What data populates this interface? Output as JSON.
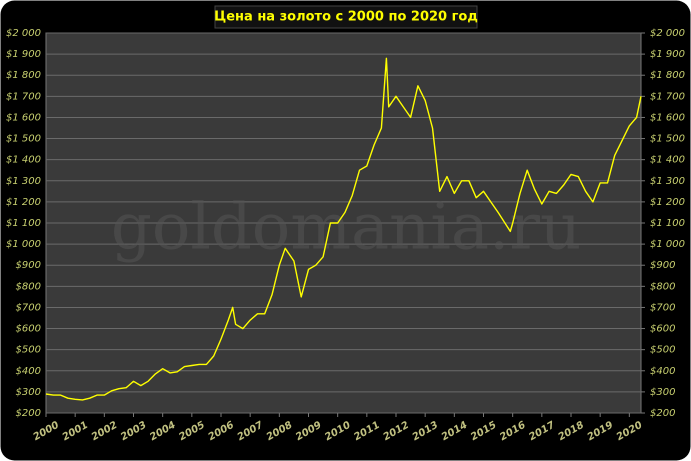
{
  "chart_data": {
    "type": "line",
    "title": "Цена на золото с 2000 по 2020 год",
    "annotation": "goldomania.ru",
    "color": "#ffff00",
    "x": [
      2000,
      2000.25,
      2000.5,
      2000.75,
      2001,
      2001.25,
      2001.5,
      2001.75,
      2002,
      2002.25,
      2002.5,
      2002.75,
      2003,
      2003.25,
      2003.5,
      2003.75,
      2004,
      2004.25,
      2004.5,
      2004.75,
      2005,
      2005.25,
      2005.5,
      2005.75,
      2006,
      2006.25,
      2006.4,
      2006.5,
      2006.75,
      2007,
      2007.25,
      2007.5,
      2007.75,
      2008,
      2008.2,
      2008.5,
      2008.75,
      2009,
      2009.25,
      2009.5,
      2009.75,
      2010,
      2010.25,
      2010.5,
      2010.75,
      2011,
      2011.25,
      2011.5,
      2011.67,
      2011.75,
      2012,
      2012.25,
      2012.5,
      2012.75,
      2013,
      2013.25,
      2013.5,
      2013.75,
      2014,
      2014.25,
      2014.5,
      2014.75,
      2015,
      2015.25,
      2015.5,
      2015.92,
      2016,
      2016.25,
      2016.5,
      2016.75,
      2017,
      2017.25,
      2017.5,
      2017.75,
      2018,
      2018.25,
      2018.5,
      2018.75,
      2019,
      2019.25,
      2019.5,
      2019.75,
      2020,
      2020.25,
      2020.4
    ],
    "values": [
      290,
      285,
      285,
      270,
      265,
      262,
      270,
      285,
      285,
      305,
      315,
      320,
      350,
      330,
      350,
      385,
      410,
      390,
      395,
      420,
      425,
      430,
      430,
      470,
      550,
      640,
      700,
      620,
      600,
      640,
      670,
      670,
      760,
      900,
      980,
      920,
      750,
      880,
      900,
      940,
      1100,
      1100,
      1150,
      1230,
      1350,
      1370,
      1470,
      1550,
      1880,
      1650,
      1700,
      1650,
      1600,
      1750,
      1680,
      1550,
      1250,
      1320,
      1240,
      1300,
      1300,
      1220,
      1250,
      1200,
      1150,
      1060,
      1100,
      1240,
      1350,
      1260,
      1190,
      1250,
      1240,
      1280,
      1330,
      1320,
      1250,
      1200,
      1290,
      1290,
      1420,
      1490,
      1560,
      1600,
      1700
    ],
    "xlim": [
      2000,
      2020.4
    ],
    "xticks": [
      2000,
      2001,
      2002,
      2003,
      2004,
      2005,
      2006,
      2007,
      2008,
      2009,
      2010,
      2011,
      2012,
      2013,
      2014,
      2015,
      2016,
      2017,
      2018,
      2019,
      2020
    ],
    "ylim": [
      200,
      2000
    ],
    "yticks": [
      {
        "value": 200,
        "label": "$200"
      },
      {
        "value": 300,
        "label": "$300"
      },
      {
        "value": 400,
        "label": "$400"
      },
      {
        "value": 500,
        "label": "$500"
      },
      {
        "value": 600,
        "label": "$600"
      },
      {
        "value": 700,
        "label": "$700"
      },
      {
        "value": 800,
        "label": "$800"
      },
      {
        "value": 900,
        "label": "$900"
      },
      {
        "value": 1000,
        "label": "$1 000"
      },
      {
        "value": 1100,
        "label": "$1 100"
      },
      {
        "value": 1200,
        "label": "$1 200"
      },
      {
        "value": 1300,
        "label": "$1 300"
      },
      {
        "value": 1400,
        "label": "$1 400"
      },
      {
        "value": 1500,
        "label": "$1 500"
      },
      {
        "value": 1600,
        "label": "$1 600"
      },
      {
        "value": 1700,
        "label": "$1 700"
      },
      {
        "value": 1800,
        "label": "$1 800"
      },
      {
        "value": 1900,
        "label": "$1 900"
      },
      {
        "value": 2000,
        "label": "$2 000"
      }
    ],
    "y2lim": [
      200,
      2000
    ],
    "y2ticks": [
      {
        "value": 200,
        "label": "$200"
      },
      {
        "value": 300,
        "label": "$300"
      },
      {
        "value": 400,
        "label": "$400"
      },
      {
        "value": 500,
        "label": "$500"
      },
      {
        "value": 600,
        "label": "$600"
      },
      {
        "value": 700,
        "label": "$700"
      },
      {
        "value": 800,
        "label": "$800"
      },
      {
        "value": 900,
        "label": "$900"
      },
      {
        "value": 1000,
        "label": "$1 000"
      },
      {
        "value": 1100,
        "label": "$1 100"
      },
      {
        "value": 1200,
        "label": "$1 200"
      },
      {
        "value": 1300,
        "label": "$1 300"
      },
      {
        "value": 1400,
        "label": "$1 400"
      },
      {
        "value": 1500,
        "label": "$1 500"
      },
      {
        "value": 1600,
        "label": "$1 600"
      },
      {
        "value": 1700,
        "label": "$1 700"
      },
      {
        "value": 1800,
        "label": "$1 800"
      },
      {
        "value": 1900,
        "label": "$1 900"
      },
      {
        "value": 2000,
        "label": "$2 000"
      }
    ],
    "grid": true
  }
}
